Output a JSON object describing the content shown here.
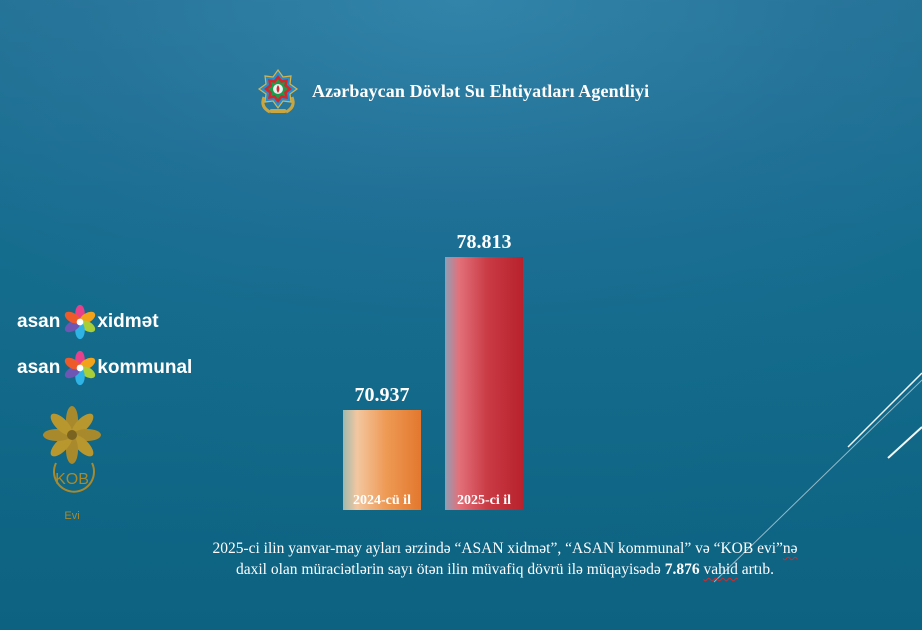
{
  "header": {
    "agency_title": "Azərbaycan Dövlət Su Ehtiyatları Agentliyi",
    "emblem_icon": "azerbaijan-state-emblem-icon"
  },
  "logos": {
    "asan_xidmet": {
      "left": "asan",
      "right": "xidmət",
      "icon": "asan-flower-icon"
    },
    "asan_kommunal": {
      "left": "asan",
      "right": "kommunal",
      "icon": "asan-flower-icon"
    },
    "kob_evi": {
      "mark": "KOB",
      "sub": "Evi",
      "icon": "kob-evi-flower-icon"
    }
  },
  "chart_data": {
    "type": "bar",
    "categories": [
      "2024-cü il",
      "2025-ci il"
    ],
    "values": [
      70937,
      78813
    ],
    "value_labels": [
      "70.937",
      "78.813"
    ],
    "colors": [
      "#e98a3f",
      "#bf2e36"
    ],
    "title": "",
    "xlabel": "",
    "ylabel": "",
    "ylim": [
      0,
      84000
    ],
    "grid": false
  },
  "caption": {
    "line1": "2025-ci ilin yanvar-may ayları ərzində “ASAN xidmət”, “ASAN kommunal” və “KOB evi”",
    "line1_tail": "nə",
    "line2_start": "daxil olan müraciətlərin sayı ötən ilin müvafiq dövrü ilə müqayisədə ",
    "line2_bold": "7.876",
    "line2_sp": " ",
    "line2_wavy": "vahid",
    "line2_end": " artıb."
  }
}
